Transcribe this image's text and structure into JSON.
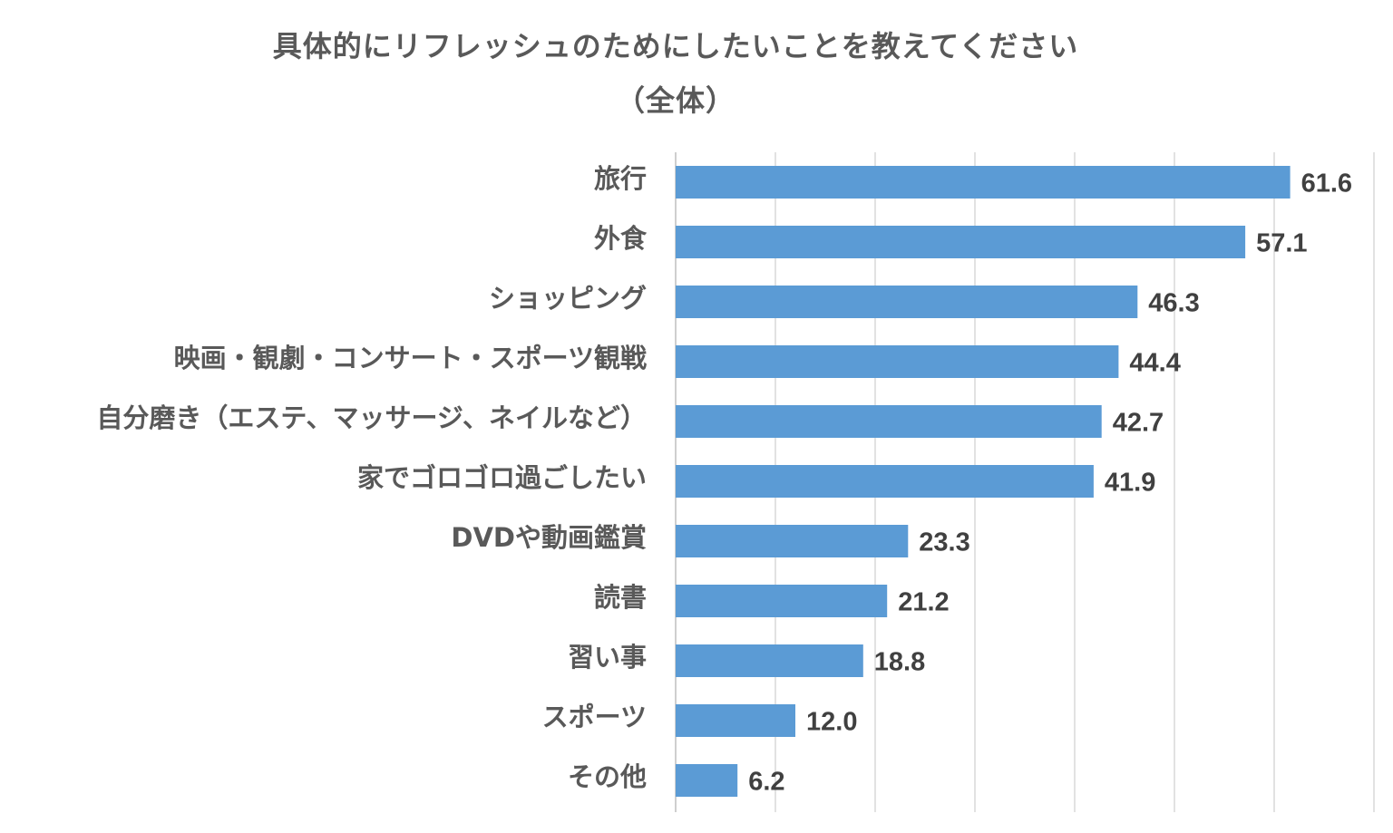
{
  "chart_data": {
    "type": "bar",
    "orientation": "horizontal",
    "title": "具体的にリフレッシュのためにしたいことを教えてください",
    "subtitle": "（全体）",
    "categories": [
      "旅行",
      "外食",
      "ショッピング",
      "映画・観劇・コンサート・スポーツ観戦",
      "自分磨き（エステ、マッサージ、ネイルなど）",
      "家でゴロゴロ過ごしたい",
      "DVDや動画鑑賞",
      "読書",
      "習い事",
      "スポーツ",
      "その他"
    ],
    "values": [
      61.6,
      57.1,
      46.3,
      44.4,
      42.7,
      41.9,
      23.3,
      21.2,
      18.8,
      12.0,
      6.2
    ],
    "value_labels": [
      "61.6",
      "57.1",
      "46.3",
      "44.4",
      "42.7",
      "41.9",
      "23.3",
      "21.2",
      "18.8",
      "12.0",
      "6.2"
    ],
    "xlim": [
      0,
      70
    ],
    "grid": true,
    "legend": "none",
    "colors": {
      "bar": "#5b9bd5",
      "grid": "#d9d9d9",
      "text": "#595959"
    }
  }
}
